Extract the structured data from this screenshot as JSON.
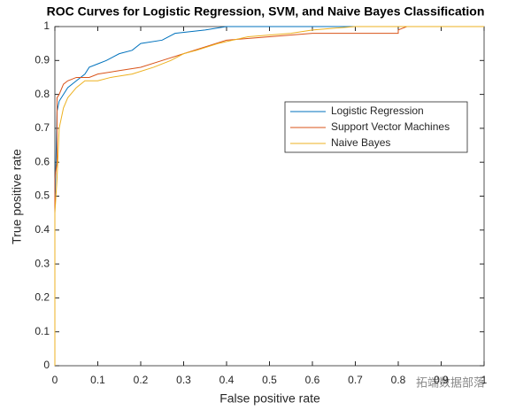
{
  "chart_data": {
    "type": "line",
    "title": "ROC Curves for Logistic Regression, SVM, and Naive Bayes Classification",
    "x_label": "False positive rate",
    "y_label": "True positive rate",
    "xlim": [
      0,
      1
    ],
    "ylim": [
      0,
      1
    ],
    "xticks": [
      0,
      0.1,
      0.2,
      0.3,
      0.4,
      0.5,
      0.6,
      0.7,
      0.8,
      0.9,
      1
    ],
    "yticks": [
      0,
      0.1,
      0.2,
      0.3,
      0.4,
      0.5,
      0.6,
      0.7,
      0.8,
      0.9,
      1
    ],
    "legend": "upper right",
    "watermark": "拓端数据部落",
    "series": [
      {
        "name": "Logistic Regression",
        "color": "#0072bd",
        "x": [
          0,
          0,
          0.005,
          0.01,
          0.02,
          0.03,
          0.05,
          0.07,
          0.08,
          0.1,
          0.12,
          0.15,
          0.18,
          0.2,
          0.25,
          0.28,
          0.35,
          0.4,
          1
        ],
        "values": [
          0,
          0.46,
          0.75,
          0.78,
          0.8,
          0.82,
          0.84,
          0.86,
          0.88,
          0.89,
          0.9,
          0.92,
          0.93,
          0.95,
          0.96,
          0.98,
          0.99,
          1,
          1
        ]
      },
      {
        "name": "Support Vector Machines",
        "color": "#d95319",
        "x": [
          0,
          0,
          0.005,
          0.005,
          0.01,
          0.02,
          0.03,
          0.05,
          0.08,
          0.1,
          0.15,
          0.2,
          0.25,
          0.3,
          0.35,
          0.4,
          0.5,
          0.6,
          0.8,
          0.8,
          0.82,
          1
        ],
        "values": [
          0,
          0.55,
          0.6,
          0.79,
          0.8,
          0.83,
          0.84,
          0.85,
          0.85,
          0.86,
          0.87,
          0.88,
          0.9,
          0.92,
          0.94,
          0.96,
          0.97,
          0.98,
          0.98,
          0.99,
          1,
          1
        ]
      },
      {
        "name": "Naive Bayes",
        "color": "#edb120",
        "x": [
          0,
          0,
          0.005,
          0.01,
          0.02,
          0.03,
          0.05,
          0.07,
          0.1,
          0.13,
          0.18,
          0.23,
          0.27,
          0.3,
          0.33,
          0.38,
          0.45,
          0.55,
          0.6,
          0.7,
          1
        ],
        "values": [
          0,
          0.45,
          0.55,
          0.7,
          0.76,
          0.79,
          0.82,
          0.84,
          0.84,
          0.85,
          0.86,
          0.88,
          0.9,
          0.92,
          0.93,
          0.95,
          0.97,
          0.98,
          0.99,
          1,
          1
        ]
      }
    ]
  }
}
